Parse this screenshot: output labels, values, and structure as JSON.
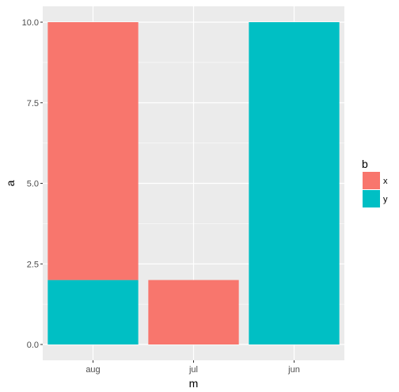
{
  "chart_data": {
    "type": "bar",
    "stacked": true,
    "categories": [
      "aug",
      "jul",
      "jun"
    ],
    "series": [
      {
        "name": "x",
        "color": "#F8766D",
        "values": [
          8,
          2,
          0
        ]
      },
      {
        "name": "y",
        "color": "#00BFC4",
        "values": [
          2,
          0,
          10
        ]
      }
    ],
    "stack_order_top_to_bottom": [
      "x",
      "y"
    ],
    "xlabel": "m",
    "ylabel": "a",
    "ylim": [
      0,
      10
    ],
    "yticks": [
      0,
      2.5,
      5,
      7.5,
      10
    ],
    "ytick_labels": [
      "0.0",
      "2.5",
      "5.0",
      "7.5",
      "10.0"
    ],
    "grid": true,
    "panel_background": "#EBEBEB",
    "legend": {
      "title": "b",
      "placement": "right"
    }
  }
}
